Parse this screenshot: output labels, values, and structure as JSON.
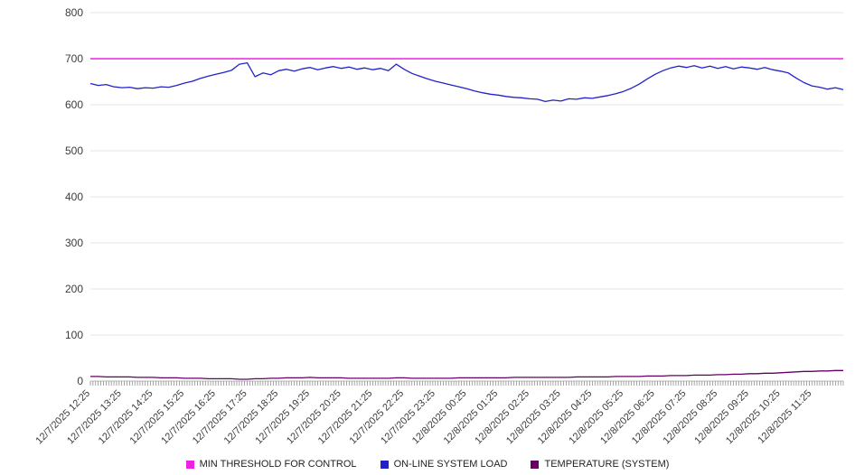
{
  "chart_data": {
    "type": "line",
    "title": "",
    "xlabel": "",
    "ylabel": "",
    "ylim": [
      0,
      800
    ],
    "y_ticks": [
      0,
      100,
      200,
      300,
      400,
      500,
      600,
      700,
      800
    ],
    "grid": "horizontal",
    "legend_position": "bottom",
    "x_labels": [
      "12/7/2025 12:25",
      "12/7/2025 13:25",
      "12/7/2025 14:25",
      "12/7/2025 15:25",
      "12/7/2025 16:25",
      "12/7/2025 17:25",
      "12/7/2025 18:25",
      "12/7/2025 19:25",
      "12/7/2025 20:25",
      "12/7/2025 21:25",
      "12/7/2025 22:25",
      "12/7/2025 23:25",
      "12/8/2025 00:25",
      "12/8/2025 01:25",
      "12/8/2025 02:25",
      "12/8/2025 03:25",
      "12/8/2025 04:25",
      "12/8/2025 05:25",
      "12/8/2025 06:25",
      "12/8/2025 07:25",
      "12/8/2025 08:25",
      "12/8/2025 09:25",
      "12/8/2025 10:25",
      "12/8/2025 11:25"
    ],
    "minor_ticks_per_label": 12,
    "series": [
      {
        "name": "MIN THRESHOLD FOR CONTROL",
        "color": "#ee22e2",
        "width": 1.6,
        "values": [
          700,
          700
        ]
      },
      {
        "name": "ON-LINE SYSTEM LOAD",
        "color": "#2222cc",
        "width": 1.3,
        "values": [
          646,
          642,
          644,
          639,
          637,
          638,
          635,
          637,
          636,
          639,
          638,
          642,
          647,
          651,
          657,
          662,
          666,
          670,
          675,
          688,
          691,
          661,
          669,
          665,
          674,
          677,
          673,
          678,
          681,
          676,
          680,
          683,
          679,
          682,
          677,
          680,
          676,
          679,
          674,
          688,
          677,
          668,
          662,
          656,
          651,
          647,
          643,
          639,
          635,
          630,
          626,
          623,
          621,
          618,
          616,
          615,
          613,
          612,
          607,
          610,
          608,
          613,
          612,
          615,
          614,
          617,
          620,
          624,
          629,
          636,
          645,
          656,
          666,
          674,
          680,
          684,
          681,
          685,
          680,
          684,
          679,
          683,
          678,
          682,
          680,
          677,
          681,
          676,
          673,
          669,
          658,
          648,
          641,
          638,
          634,
          637,
          633
        ]
      },
      {
        "name": "TEMPERATURE (SYSTEM)",
        "color": "#660066",
        "width": 1.3,
        "values": [
          10,
          10,
          9,
          9,
          9,
          9,
          8,
          8,
          8,
          7,
          7,
          7,
          6,
          6,
          6,
          5,
          5,
          5,
          5,
          4,
          4,
          5,
          5,
          6,
          6,
          7,
          7,
          7,
          8,
          7,
          7,
          7,
          7,
          6,
          6,
          6,
          6,
          6,
          6,
          7,
          7,
          6,
          6,
          6,
          6,
          6,
          6,
          7,
          7,
          7,
          7,
          7,
          7,
          7,
          8,
          8,
          8,
          8,
          8,
          8,
          8,
          8,
          9,
          9,
          9,
          9,
          9,
          10,
          10,
          10,
          10,
          11,
          11,
          11,
          12,
          12,
          12,
          13,
          13,
          13,
          14,
          14,
          15,
          15,
          16,
          16,
          17,
          17,
          18,
          19,
          20,
          21,
          21,
          22,
          22,
          23,
          23
        ]
      }
    ]
  }
}
